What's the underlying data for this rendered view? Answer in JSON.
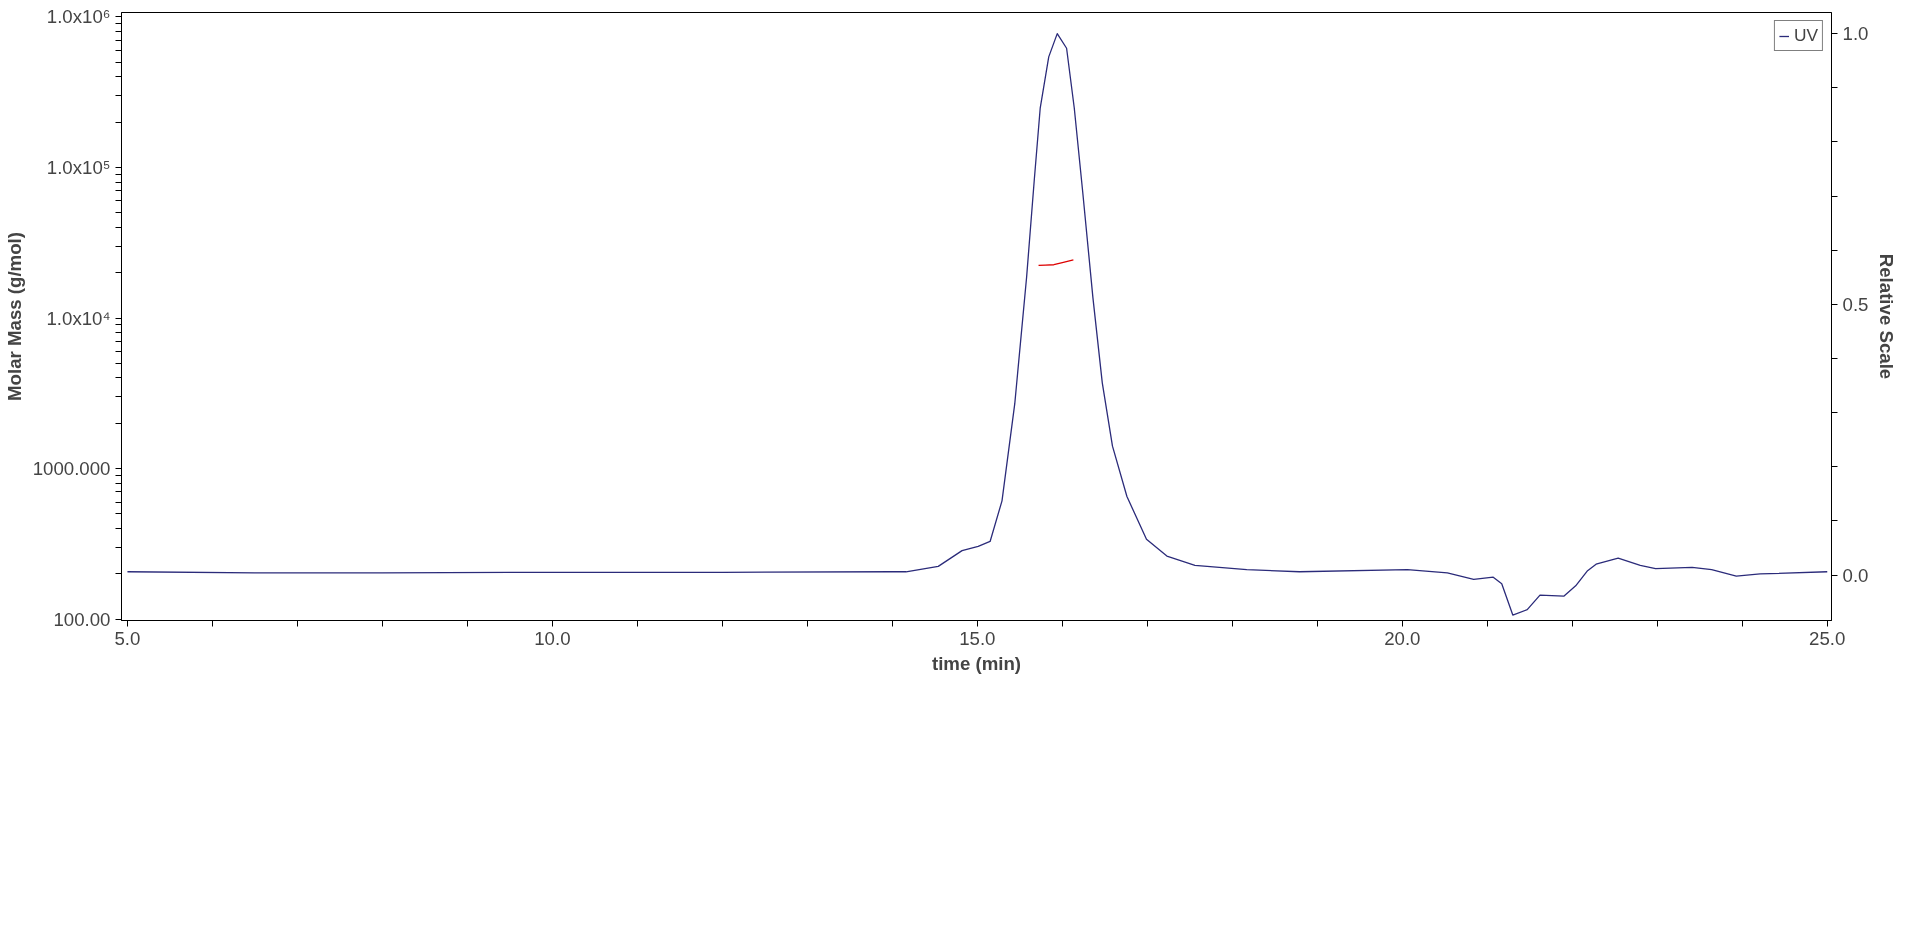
{
  "chart_data": {
    "type": "line",
    "xlabel": "time (min)",
    "ylabel": "Molar Mass (g/mol)",
    "y2label": "Relative Scale",
    "log": "y",
    "legend": "top right",
    "grid": false,
    "marker": "none",
    "line_style": "solid",
    "xlim": [
      4.93,
      25.05
    ],
    "ylim": [
      98,
      1070000
    ],
    "y2lim": [
      -0.084,
      1.039
    ],
    "xticks": [
      {
        "value": 5,
        "label": "5.0"
      },
      {
        "value": 6,
        "label": null
      },
      {
        "value": 7,
        "label": null
      },
      {
        "value": 8,
        "label": null
      },
      {
        "value": 9,
        "label": null
      },
      {
        "value": 10,
        "label": "10.0"
      },
      {
        "value": 11,
        "label": null
      },
      {
        "value": 12,
        "label": null
      },
      {
        "value": 13,
        "label": null
      },
      {
        "value": 14,
        "label": null
      },
      {
        "value": 15,
        "label": "15.0"
      },
      {
        "value": 16,
        "label": null
      },
      {
        "value": 17,
        "label": null
      },
      {
        "value": 18,
        "label": null
      },
      {
        "value": 19,
        "label": null
      },
      {
        "value": 20,
        "label": "20.0"
      },
      {
        "value": 21,
        "label": null
      },
      {
        "value": 22,
        "label": null
      },
      {
        "value": 23,
        "label": null
      },
      {
        "value": 24,
        "label": null
      },
      {
        "value": 25,
        "label": "25.0"
      }
    ],
    "yticks": [
      {
        "value": 100,
        "label": "100.00"
      },
      {
        "value": 200,
        "label": null
      },
      {
        "value": 300,
        "label": null
      },
      {
        "value": 400,
        "label": null
      },
      {
        "value": 500,
        "label": null
      },
      {
        "value": 600,
        "label": null
      },
      {
        "value": 700,
        "label": null
      },
      {
        "value": 800,
        "label": null
      },
      {
        "value": 900,
        "label": null
      },
      {
        "value": 1000,
        "label": "1000.000"
      },
      {
        "value": 2000,
        "label": null
      },
      {
        "value": 3000,
        "label": null
      },
      {
        "value": 4000,
        "label": null
      },
      {
        "value": 5000,
        "label": null
      },
      {
        "value": 6000,
        "label": null
      },
      {
        "value": 7000,
        "label": null
      },
      {
        "value": 8000,
        "label": null
      },
      {
        "value": 9000,
        "label": null
      },
      {
        "value": 10000,
        "label": "1.0x10⁴"
      },
      {
        "value": 20000,
        "label": null
      },
      {
        "value": 30000,
        "label": null
      },
      {
        "value": 40000,
        "label": null
      },
      {
        "value": 50000,
        "label": null
      },
      {
        "value": 60000,
        "label": null
      },
      {
        "value": 70000,
        "label": null
      },
      {
        "value": 80000,
        "label": null
      },
      {
        "value": 90000,
        "label": null
      },
      {
        "value": 100000,
        "label": "1.0x10⁵"
      },
      {
        "value": 200000,
        "label": null
      },
      {
        "value": 300000,
        "label": null
      },
      {
        "value": 400000,
        "label": null
      },
      {
        "value": 500000,
        "label": null
      },
      {
        "value": 600000,
        "label": null
      },
      {
        "value": 700000,
        "label": null
      },
      {
        "value": 800000,
        "label": null
      },
      {
        "value": 900000,
        "label": null
      },
      {
        "value": 1000000,
        "label": "1.0x10⁶"
      }
    ],
    "y2ticks": [
      {
        "value": 0,
        "label": "0.0"
      },
      {
        "value": 0.1,
        "label": null
      },
      {
        "value": 0.2,
        "label": null
      },
      {
        "value": 0.3,
        "label": null
      },
      {
        "value": 0.4,
        "label": null
      },
      {
        "value": 0.5,
        "label": "0.5"
      },
      {
        "value": 0.6,
        "label": null
      },
      {
        "value": 0.7,
        "label": null
      },
      {
        "value": 0.8,
        "label": null
      },
      {
        "value": 0.9,
        "label": null
      },
      {
        "value": 1.0,
        "label": "1.0"
      }
    ],
    "series": [
      {
        "name": "UV",
        "color": "#2b2b7a",
        "axis": "y2",
        "x": [
          5.0,
          6.5,
          8.0,
          10.0,
          12.0,
          14.0,
          14.16,
          14.54,
          14.82,
          15.01,
          15.15,
          15.29,
          15.44,
          15.58,
          15.67,
          15.74,
          15.84,
          15.94,
          16.05,
          16.14,
          16.24,
          16.36,
          16.47,
          16.59,
          16.76,
          16.99,
          17.23,
          17.56,
          18.17,
          18.79,
          20.06,
          20.53,
          20.84,
          21.07,
          21.17,
          21.3,
          21.47,
          21.62,
          21.9,
          22.04,
          22.18,
          22.28,
          22.54,
          22.8,
          22.98,
          23.41,
          23.64,
          23.93,
          24.21,
          25.0
        ],
        "values": [
          0.006,
          0.004,
          0.004,
          0.005,
          0.005,
          0.006,
          0.006,
          0.016,
          0.045,
          0.053,
          0.062,
          0.137,
          0.316,
          0.551,
          0.73,
          0.863,
          0.957,
          1.0,
          0.973,
          0.863,
          0.707,
          0.512,
          0.355,
          0.238,
          0.145,
          0.066,
          0.035,
          0.018,
          0.01,
          0.006,
          0.01,
          0.004,
          -0.008,
          -0.004,
          -0.016,
          -0.074,
          -0.064,
          -0.037,
          -0.039,
          -0.02,
          0.008,
          0.02,
          0.031,
          0.018,
          0.012,
          0.014,
          0.01,
          -0.002,
          0.002,
          0.006
        ]
      },
      {
        "color": "#dd0000",
        "x": [
          15.72,
          15.8,
          15.9,
          16.0,
          16.13
        ],
        "values": [
          22400,
          22500,
          22600,
          23300,
          24300
        ]
      }
    ]
  }
}
